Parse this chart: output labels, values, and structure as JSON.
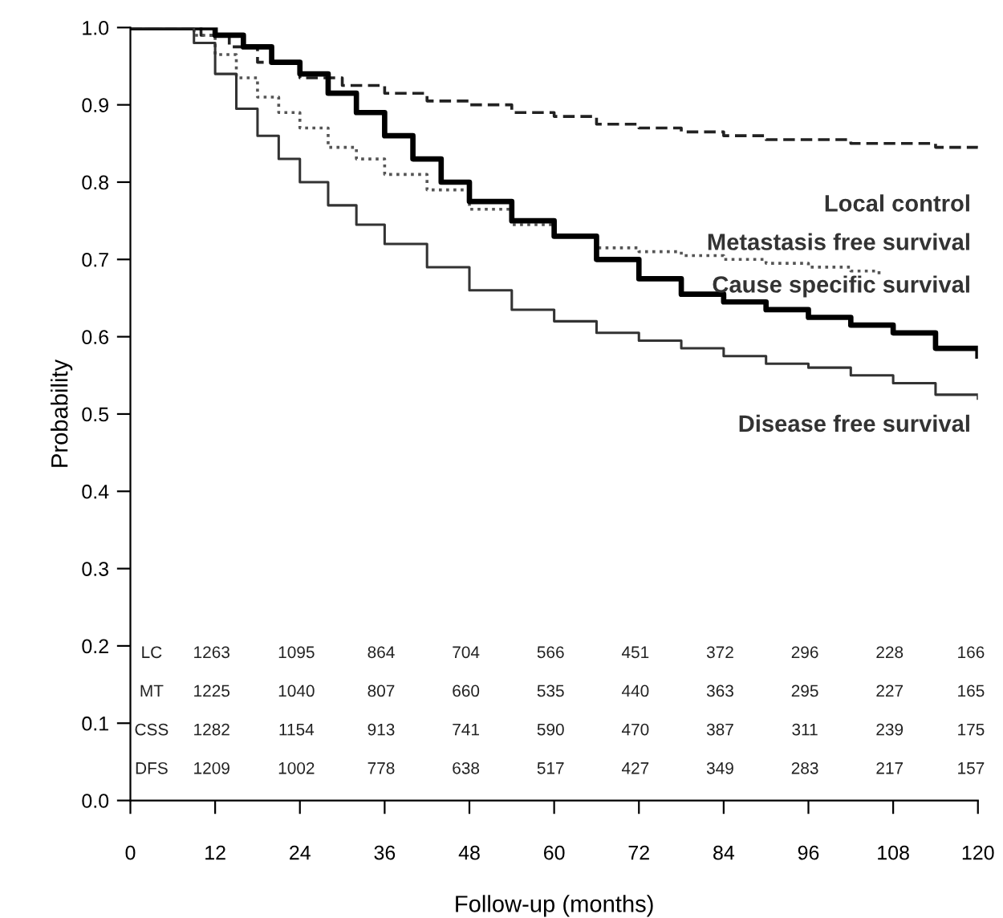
{
  "chart_data": {
    "type": "step",
    "xlabel": "Follow-up (months)",
    "ylabel": "Probability",
    "xlim": [
      0,
      120
    ],
    "ylim": [
      0,
      1
    ],
    "xticks": [
      0,
      12,
      24,
      36,
      48,
      60,
      72,
      84,
      96,
      108,
      120
    ],
    "yticks": [
      {
        "value": 0,
        "label": "0.0"
      },
      0.1,
      0.2,
      0.3,
      0.4,
      0.5,
      0.6,
      0.7,
      0.8,
      0.9,
      {
        "value": 1,
        "label": "1.0"
      }
    ],
    "grid": false,
    "legend": false,
    "series": [
      {
        "name": "Local control",
        "color": "#222222",
        "line_style": "dashed",
        "x": [
          0,
          6,
          10,
          14,
          18,
          24,
          30,
          36,
          42,
          48,
          54,
          60,
          66,
          72,
          78,
          84,
          90,
          96,
          102,
          108,
          114,
          120
        ],
        "values": [
          1.0,
          1.0,
          0.99,
          0.975,
          0.955,
          0.935,
          0.925,
          0.915,
          0.905,
          0.9,
          0.89,
          0.885,
          0.875,
          0.87,
          0.865,
          0.86,
          0.855,
          0.855,
          0.85,
          0.85,
          0.845,
          0.84
        ]
      },
      {
        "name": "Metastasis free survival",
        "color": "#555555",
        "line_style": "dotted",
        "x": [
          0,
          6,
          9,
          12,
          15,
          18,
          21,
          24,
          28,
          32,
          36,
          42,
          48,
          54,
          60,
          66,
          72,
          78,
          84,
          90,
          96,
          102,
          106
        ],
        "values": [
          1.0,
          1.0,
          0.99,
          0.965,
          0.935,
          0.91,
          0.89,
          0.87,
          0.845,
          0.83,
          0.81,
          0.79,
          0.765,
          0.745,
          0.73,
          0.715,
          0.71,
          0.705,
          0.7,
          0.695,
          0.69,
          0.685,
          0.68
        ]
      },
      {
        "name": "Cause specific survival",
        "color": "#000000",
        "line_style": "solid",
        "x": [
          0,
          8,
          12,
          16,
          20,
          24,
          28,
          32,
          36,
          40,
          44,
          48,
          54,
          60,
          66,
          72,
          78,
          84,
          90,
          96,
          102,
          108,
          114,
          120
        ],
        "values": [
          1.0,
          1.0,
          0.99,
          0.975,
          0.955,
          0.94,
          0.915,
          0.89,
          0.86,
          0.83,
          0.8,
          0.775,
          0.75,
          0.73,
          0.7,
          0.675,
          0.655,
          0.645,
          0.635,
          0.625,
          0.615,
          0.605,
          0.585,
          0.575
        ]
      },
      {
        "name": "Disease free survival",
        "color": "#333333",
        "line_style": "solid",
        "x": [
          0,
          6,
          9,
          12,
          15,
          18,
          21,
          24,
          28,
          32,
          36,
          42,
          48,
          54,
          60,
          66,
          72,
          78,
          84,
          90,
          96,
          102,
          108,
          114,
          120
        ],
        "values": [
          1.0,
          1.0,
          0.98,
          0.94,
          0.895,
          0.86,
          0.83,
          0.8,
          0.77,
          0.745,
          0.72,
          0.69,
          0.66,
          0.635,
          0.62,
          0.605,
          0.595,
          0.585,
          0.575,
          0.565,
          0.56,
          0.55,
          0.54,
          0.525,
          0.52
        ]
      }
    ],
    "annotations": [
      "LC",
      "1263",
      "1095",
      "864",
      "704",
      "566",
      "451",
      "372",
      "296",
      "228",
      "166",
      "MT",
      "1225",
      "1040",
      "807",
      "660",
      "535",
      "440",
      "363",
      "295",
      "227",
      "165",
      "CSS",
      "1282",
      "1154",
      "913",
      "741",
      "590",
      "470",
      "387",
      "311",
      "239",
      "175",
      "DFS",
      "1209",
      "1002",
      "778",
      "638",
      "517",
      "427",
      "349",
      "283",
      "217",
      "157"
    ]
  }
}
